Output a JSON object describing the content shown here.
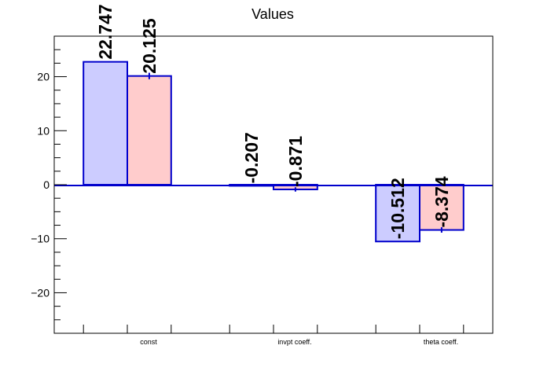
{
  "chart_data": {
    "type": "bar",
    "title": "Values",
    "xlabel": "",
    "ylabel": "",
    "categories": [
      "const",
      "invpt coeff.",
      "theta coeff."
    ],
    "ylim": [
      -27.5,
      27.5
    ],
    "yticks": [
      -20,
      -10,
      0,
      10,
      20
    ],
    "grid": false,
    "series": [
      {
        "values": [
          22.747,
          -0.207,
          -10.512
        ],
        "labels": [
          "22.747",
          "-0.207",
          "-10.512"
        ],
        "errors": [
          0,
          0,
          0
        ],
        "fill": "#ccccff",
        "stroke": "#0000cc"
      },
      {
        "values": [
          20.125,
          -0.871,
          -8.374
        ],
        "labels": [
          "20.125",
          "-0.871",
          "-8.374"
        ],
        "errors": [
          0.6,
          0.4,
          0.5
        ],
        "fill": "#ffcccc",
        "stroke": "#0000cc"
      }
    ]
  }
}
